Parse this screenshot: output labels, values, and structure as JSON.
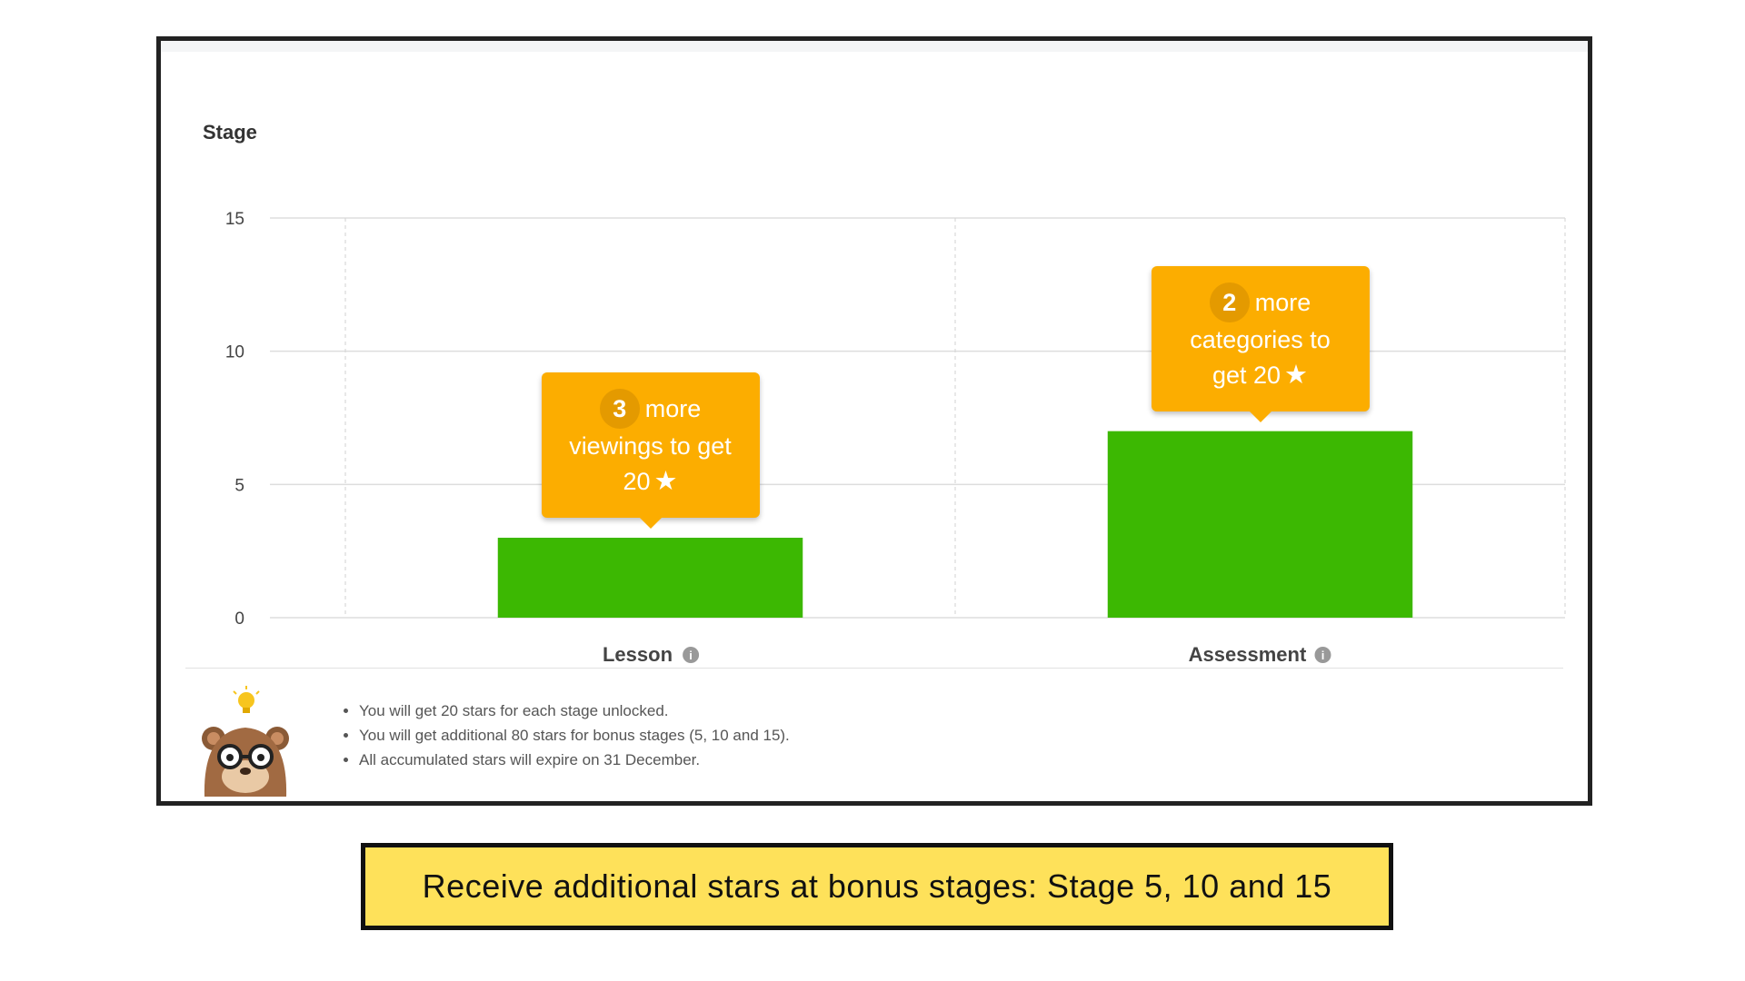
{
  "chart_data": {
    "type": "bar",
    "ylabel": "Stage",
    "categories": [
      "Lesson",
      "Assessment"
    ],
    "values": [
      3,
      7
    ],
    "ylim": [
      0,
      15
    ],
    "yticks": [
      0,
      5,
      10,
      15
    ],
    "grid": true,
    "bar_color": "#3cb802"
  },
  "tooltips": [
    {
      "count": "3",
      "text_line1": "more",
      "text_line2": "viewings to get",
      "text_line3": "20"
    },
    {
      "count": "2",
      "text_line1": "more",
      "text_line2": "categories to",
      "text_line3": "get 20"
    }
  ],
  "notes": [
    "You will get 20 stars for each stage unlocked.",
    "You will get additional 80 stars for bonus stages (5, 10 and 15).",
    "All accumulated stars will expire on 31 December."
  ],
  "caption": "Receive additional stars at bonus stages: Stage 5, 10 and 15",
  "colors": {
    "tooltip": "#fcad00",
    "bar": "#3cb802",
    "caption_bg": "#fee15a"
  },
  "icons": [
    "info-icon",
    "star-icon",
    "mascot-image",
    "lightbulb-icon"
  ]
}
